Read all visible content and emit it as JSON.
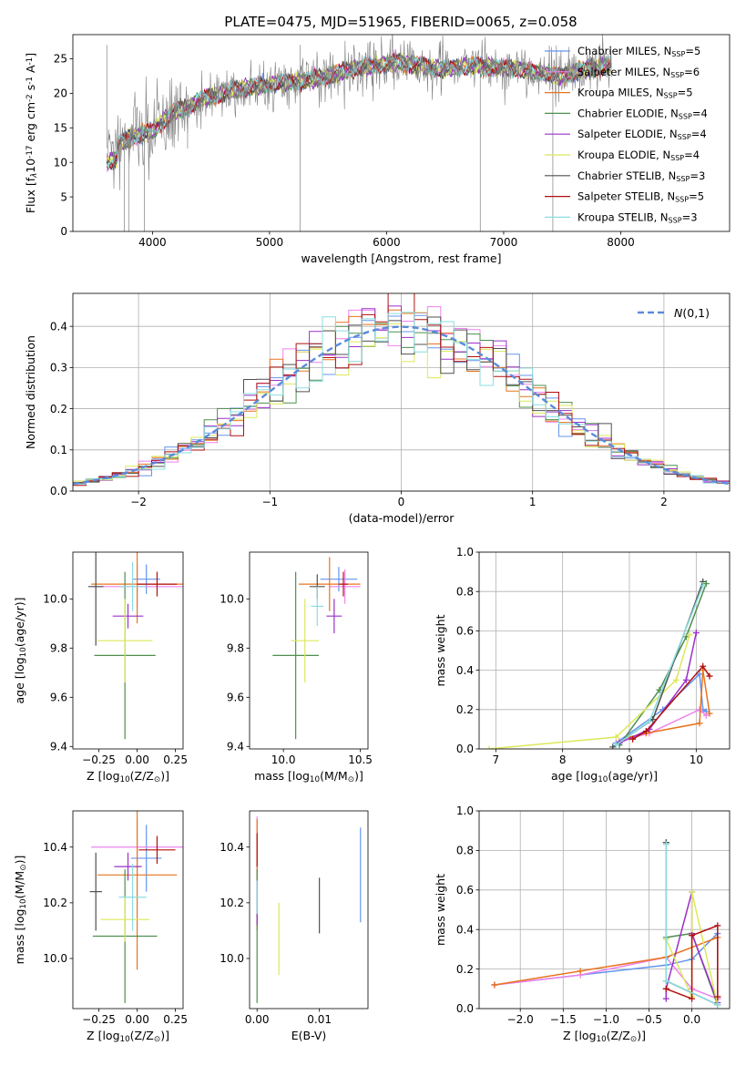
{
  "figure_title": "PLATE=0475, MJD=51965, FIBERID=0065, z=0.058",
  "chart_data": [
    {
      "id": "spectrum",
      "type": "line",
      "xlabel": "wavelength [Angstrom, rest frame]",
      "ylabel": "Flux [f$_\\lambda$10$^{-17}$ erg cm$^{-2}$ s$^{-1}$ A$^{-1}$]",
      "xlim": [
        3320,
        8930
      ],
      "ylim": [
        0,
        28.5
      ],
      "xticks": [
        4000,
        5000,
        6000,
        7000,
        8000
      ],
      "yticks": [
        0,
        5,
        10,
        15,
        20,
        25
      ],
      "grid": false,
      "legend": "upper right",
      "data_trace_color": "#808080",
      "continuum_x": [
        3600,
        3700,
        3800,
        3900,
        4000,
        4100,
        4200,
        4300,
        4400,
        4500,
        4700,
        4900,
        5100,
        5300,
        5500,
        5700,
        5900,
        6100,
        6300,
        6500,
        6700,
        6900,
        7100,
        7300,
        7500,
        7700,
        7900
      ],
      "continuum_y": [
        12.0,
        12.5,
        13.5,
        14.0,
        14.5,
        16.0,
        17.5,
        18.0,
        19.0,
        19.5,
        20.5,
        21.0,
        21.5,
        21.8,
        22.5,
        23.5,
        24.0,
        24.5,
        24.0,
        23.5,
        24.0,
        23.8,
        23.5,
        23.0,
        22.5,
        23.5,
        24.0
      ],
      "series": [
        {
          "name": "Chabrier MILES, N$_{SSP}$=5",
          "color": "#6495ED"
        },
        {
          "name": "Salpeter MILES, N$_{SSP}$=6",
          "color": "#EE82EE"
        },
        {
          "name": "Kroupa MILES, N$_{SSP}$=5",
          "color": "#E8741E"
        },
        {
          "name": "Chabrier ELODIE, N$_{SSP}$=4",
          "color": "#4E8F4E"
        },
        {
          "name": "Salpeter ELODIE, N$_{SSP}$=4",
          "color": "#9B30C8"
        },
        {
          "name": "Kroupa ELODIE, N$_{SSP}$=4",
          "color": "#DCE85A"
        },
        {
          "name": "Chabrier STELIB, N$_{SSP}$=3",
          "color": "#505050"
        },
        {
          "name": "Salpeter STELIB, N$_{SSP}$=5",
          "color": "#B01010"
        },
        {
          "name": "Kroupa STELIB, N$_{SSP}$=3",
          "color": "#8ADDE0"
        }
      ]
    },
    {
      "id": "residual-histogram",
      "type": "bar",
      "xlabel": "(data-model)/error",
      "ylabel": "Normed distribution",
      "xlim": [
        -2.5,
        2.5
      ],
      "ylim": [
        0,
        0.48
      ],
      "xticks": [
        -2,
        -1,
        0,
        1,
        2
      ],
      "yticks": [
        0.0,
        0.1,
        0.2,
        0.3,
        0.4
      ],
      "grid": true,
      "legend": "upper right",
      "reference_curve": {
        "name": "$\\mathcal{N}(0,1)$",
        "color": "#5B8BD9",
        "style": "dashed"
      },
      "bin_width": 0.1,
      "series_colors": [
        "#6495ED",
        "#EE82EE",
        "#E8741E",
        "#4E8F4E",
        "#9B30C8",
        "#DCE85A",
        "#505050",
        "#B01010",
        "#8ADDE0"
      ]
    },
    {
      "id": "age-vs-metallicity",
      "type": "scatter",
      "xlabel": "Z [log$_{10}$(Z/Z$_\\odot$)]",
      "ylabel": "age  [log$_{10}$(age/yr)]",
      "xlim": [
        -0.42,
        0.3
      ],
      "ylim": [
        9.39,
        10.19
      ],
      "xticks": [
        -0.25,
        0.0,
        0.25
      ],
      "yticks": [
        9.4,
        9.6,
        9.8,
        10.0
      ],
      "grid": false,
      "points": [
        {
          "x": 0.06,
          "y": 10.08,
          "xerr": 0.09,
          "yerr": 0.06,
          "color": "#6495ED"
        },
        {
          "x": 0.0,
          "y": 10.05,
          "xerr": 0.3,
          "yerr": 0.09,
          "color": "#EE82EE"
        },
        {
          "x": 0.0,
          "y": 10.06,
          "xerr": 0.3,
          "yerr": 0.16,
          "color": "#E8741E"
        },
        {
          "x": -0.08,
          "y": 9.77,
          "xerr": 0.2,
          "yerr": 0.34,
          "color": "#4E8F4E"
        },
        {
          "x": -0.06,
          "y": 9.93,
          "xerr": 0.1,
          "yerr": 0.05,
          "color": "#9B30C8"
        },
        {
          "x": -0.08,
          "y": 9.83,
          "xerr": 0.18,
          "yerr": 0.17,
          "color": "#DCE85A"
        },
        {
          "x": -0.27,
          "y": 10.05,
          "xerr": 0.05,
          "yerr": 0.24,
          "color": "#505050"
        },
        {
          "x": 0.13,
          "y": 10.06,
          "xerr": 0.13,
          "yerr": 0.05,
          "color": "#B01010"
        },
        {
          "x": -0.03,
          "y": 10.05,
          "xerr": 0.08,
          "yerr": 0.1,
          "color": "#8ADDE0"
        }
      ]
    },
    {
      "id": "age-vs-mass",
      "type": "scatter",
      "xlabel": "mass [log$_{10}$(M/M$_\\odot$)]",
      "ylabel": "",
      "xlim": [
        9.78,
        10.55
      ],
      "ylim": [
        9.39,
        10.19
      ],
      "xticks": [
        10.0,
        10.5
      ],
      "yticks": [
        9.4,
        9.6,
        9.8,
        10.0
      ],
      "grid": false,
      "points": [
        {
          "x": 10.36,
          "y": 10.08,
          "xerr": 0.12,
          "yerr": 0.05,
          "color": "#6495ED"
        },
        {
          "x": 10.4,
          "y": 10.05,
          "xerr": 0.1,
          "yerr": 0.07,
          "color": "#EE82EE"
        },
        {
          "x": 10.3,
          "y": 10.06,
          "xerr": 0.2,
          "yerr": 0.11,
          "color": "#E8741E"
        },
        {
          "x": 10.08,
          "y": 9.77,
          "xerr": 0.15,
          "yerr": 0.34,
          "color": "#4E8F4E"
        },
        {
          "x": 10.33,
          "y": 9.93,
          "xerr": 0.05,
          "yerr": 0.07,
          "color": "#9B30C8"
        },
        {
          "x": 10.14,
          "y": 9.83,
          "xerr": 0.09,
          "yerr": 0.17,
          "color": "#DCE85A"
        },
        {
          "x": 10.22,
          "y": 10.05,
          "xerr": 0.05,
          "yerr": 0.05,
          "color": "#505050"
        },
        {
          "x": 10.39,
          "y": 10.06,
          "xerr": 0.03,
          "yerr": 0.05,
          "color": "#B01010"
        },
        {
          "x": 10.22,
          "y": 9.97,
          "xerr": 0.04,
          "yerr": 0.08,
          "color": "#8ADDE0"
        }
      ]
    },
    {
      "id": "mass-weight-vs-age",
      "type": "line",
      "xlabel": "age  [log$_{10}$(age/yr)]",
      "ylabel": "mass weight",
      "xlim": [
        6.75,
        10.5
      ],
      "ylim": [
        0,
        1
      ],
      "xticks": [
        7,
        8,
        9,
        10
      ],
      "yticks": [
        0.0,
        0.2,
        0.4,
        0.6,
        0.8,
        1.0
      ],
      "grid": true,
      "series": [
        {
          "color": "#6495ED",
          "x": [
            8.8,
            9.5,
            10.05,
            10.1,
            10.15
          ],
          "y": [
            0.03,
            0.2,
            0.38,
            0.2,
            0.19
          ]
        },
        {
          "color": "#EE82EE",
          "x": [
            8.85,
            9.3,
            10.05,
            10.15
          ],
          "y": [
            0.04,
            0.08,
            0.2,
            0.17
          ]
        },
        {
          "color": "#E8741E",
          "x": [
            9.0,
            9.25,
            10.05,
            10.1,
            10.2
          ],
          "y": [
            0.06,
            0.08,
            0.13,
            0.4,
            0.18
          ]
        },
        {
          "color": "#4E8F4E",
          "x": [
            8.85,
            9.45,
            9.85,
            10.15
          ],
          "y": [
            0.02,
            0.3,
            0.57,
            0.84
          ]
        },
        {
          "color": "#9B30C8",
          "x": [
            8.85,
            9.3,
            9.85,
            10.0
          ],
          "y": [
            0.03,
            0.1,
            0.35,
            0.59
          ]
        },
        {
          "color": "#DCE85A",
          "x": [
            6.9,
            8.8,
            9.7,
            9.9
          ],
          "y": [
            0.0,
            0.06,
            0.35,
            0.58
          ]
        },
        {
          "color": "#505050",
          "x": [
            8.75,
            9.35,
            10.1
          ],
          "y": [
            0.01,
            0.15,
            0.85
          ]
        },
        {
          "color": "#B01010",
          "x": [
            9.05,
            9.25,
            10.1,
            10.2
          ],
          "y": [
            0.05,
            0.09,
            0.42,
            0.37
          ]
        },
        {
          "color": "#8ADDE0",
          "x": [
            8.8,
            9.3,
            10.1
          ],
          "y": [
            0.02,
            0.14,
            0.83
          ]
        }
      ]
    },
    {
      "id": "mass-vs-metallicity",
      "type": "scatter",
      "xlabel": "Z [log$_{10}$(Z/Z$_\\odot$)]",
      "ylabel": "mass [log$_{10}$(M/M$_\\odot$)]",
      "xlim": [
        -0.42,
        0.3
      ],
      "ylim": [
        9.82,
        10.53
      ],
      "xticks": [
        -0.25,
        0.0,
        0.25
      ],
      "yticks": [
        10.0,
        10.2,
        10.4
      ],
      "grid": false,
      "points": [
        {
          "x": 0.06,
          "y": 10.36,
          "xerr": 0.1,
          "yerr": 0.12,
          "color": "#6495ED"
        },
        {
          "x": 0.0,
          "y": 10.4,
          "xerr": 0.3,
          "yerr": 0.1,
          "color": "#EE82EE"
        },
        {
          "x": 0.0,
          "y": 10.3,
          "xerr": 0.26,
          "yerr": 0.34,
          "color": "#E8741E"
        },
        {
          "x": -0.08,
          "y": 10.08,
          "xerr": 0.21,
          "yerr": 0.24,
          "color": "#4E8F4E"
        },
        {
          "x": -0.06,
          "y": 10.33,
          "xerr": 0.09,
          "yerr": 0.05,
          "color": "#9B30C8"
        },
        {
          "x": -0.08,
          "y": 10.14,
          "xerr": 0.16,
          "yerr": 0.08,
          "color": "#DCE85A"
        },
        {
          "x": -0.27,
          "y": 10.24,
          "xerr": 0.04,
          "yerr": 0.14,
          "color": "#505050"
        },
        {
          "x": 0.13,
          "y": 10.39,
          "xerr": 0.12,
          "yerr": 0.05,
          "color": "#B01010"
        },
        {
          "x": -0.03,
          "y": 10.22,
          "xerr": 0.09,
          "yerr": 0.12,
          "color": "#8ADDE0"
        }
      ]
    },
    {
      "id": "mass-vs-reddening",
      "type": "scatter",
      "xlabel": "E(B-V)",
      "ylabel": "",
      "xlim": [
        -0.0012,
        0.0178
      ],
      "ylim": [
        9.82,
        10.53
      ],
      "xticks": [
        0.0,
        0.01
      ],
      "yticks": [
        10.0,
        10.2,
        10.4
      ],
      "grid": false,
      "points": [
        {
          "x": 0.0166,
          "y": 10.3,
          "xerr": 0,
          "yerr": 0.17,
          "color": "#6495ED"
        },
        {
          "x": 0.0,
          "y": 10.38,
          "xerr": 0,
          "yerr": 0.13,
          "color": "#EE82EE"
        },
        {
          "x": 0.0,
          "y": 10.3,
          "xerr": 0,
          "yerr": 0.2,
          "color": "#E8741E"
        },
        {
          "x": 0.0,
          "y": 10.08,
          "xerr": 0,
          "yerr": 0.24,
          "color": "#4E8F4E"
        },
        {
          "x": 0.0,
          "y": 10.2,
          "xerr": 0,
          "yerr": 0.08,
          "color": "#9B30C8"
        },
        {
          "x": 0.0035,
          "y": 10.07,
          "xerr": 0,
          "yerr": 0.13,
          "color": "#DCE85A"
        },
        {
          "x": 0.01,
          "y": 10.19,
          "xerr": 0,
          "yerr": 0.1,
          "color": "#505050"
        },
        {
          "x": 0.0,
          "y": 10.39,
          "xerr": 0,
          "yerr": 0.06,
          "color": "#B01010"
        },
        {
          "x": 0.0,
          "y": 10.22,
          "xerr": 0,
          "yerr": 0.06,
          "color": "#8ADDE0"
        }
      ]
    },
    {
      "id": "mass-weight-vs-metallicity",
      "type": "line",
      "xlabel": "Z [log$_{10}$(Z/Z$_\\odot$)]",
      "ylabel": "mass weight",
      "xlim": [
        -2.48,
        0.44
      ],
      "ylim": [
        0,
        1
      ],
      "xticks": [
        -2.0,
        -1.5,
        -1.0,
        -0.5,
        0.0
      ],
      "yticks": [
        0.0,
        0.2,
        0.4,
        0.6,
        0.8,
        1.0
      ],
      "grid": true,
      "series": [
        {
          "color": "#6495ED",
          "x": [
            -2.3,
            -0.3,
            0.0,
            0.3,
            0.3
          ],
          "y": [
            0.12,
            0.22,
            0.25,
            0.38,
            0.05
          ]
        },
        {
          "color": "#EE82EE",
          "x": [
            -2.3,
            -1.3,
            -0.3,
            0.0,
            0.3,
            0.3
          ],
          "y": [
            0.12,
            0.17,
            0.26,
            0.1,
            0.05,
            0.02
          ]
        },
        {
          "color": "#E8741E",
          "x": [
            -2.3,
            -1.3,
            -0.3,
            0.3,
            0.3
          ],
          "y": [
            0.12,
            0.19,
            0.26,
            0.36,
            0.06
          ]
        },
        {
          "color": "#4E8F4E",
          "x": [
            -0.3,
            -0.3,
            0.0,
            0.3
          ],
          "y": [
            0.84,
            0.36,
            0.38,
            0.02
          ]
        },
        {
          "color": "#9B30C8",
          "x": [
            -0.3,
            -0.3,
            0.0,
            0.0,
            0.3
          ],
          "y": [
            0.05,
            0.1,
            0.59,
            0.38,
            0.03
          ]
        },
        {
          "color": "#DCE85A",
          "x": [
            -0.3,
            0.0,
            0.0,
            0.3
          ],
          "y": [
            0.35,
            0.06,
            0.59,
            0.02
          ]
        },
        {
          "color": "#505050",
          "x": [
            -0.3,
            -0.3,
            0.3
          ],
          "y": [
            0.84,
            0.14,
            0.02
          ]
        },
        {
          "color": "#B01010",
          "x": [
            -0.3,
            0.0,
            0.0,
            0.3,
            0.3
          ],
          "y": [
            0.1,
            0.05,
            0.37,
            0.42,
            0.06
          ]
        },
        {
          "color": "#8ADDE0",
          "x": [
            -0.3,
            -0.3,
            0.3
          ],
          "y": [
            0.83,
            0.14,
            0.02
          ]
        }
      ]
    }
  ]
}
